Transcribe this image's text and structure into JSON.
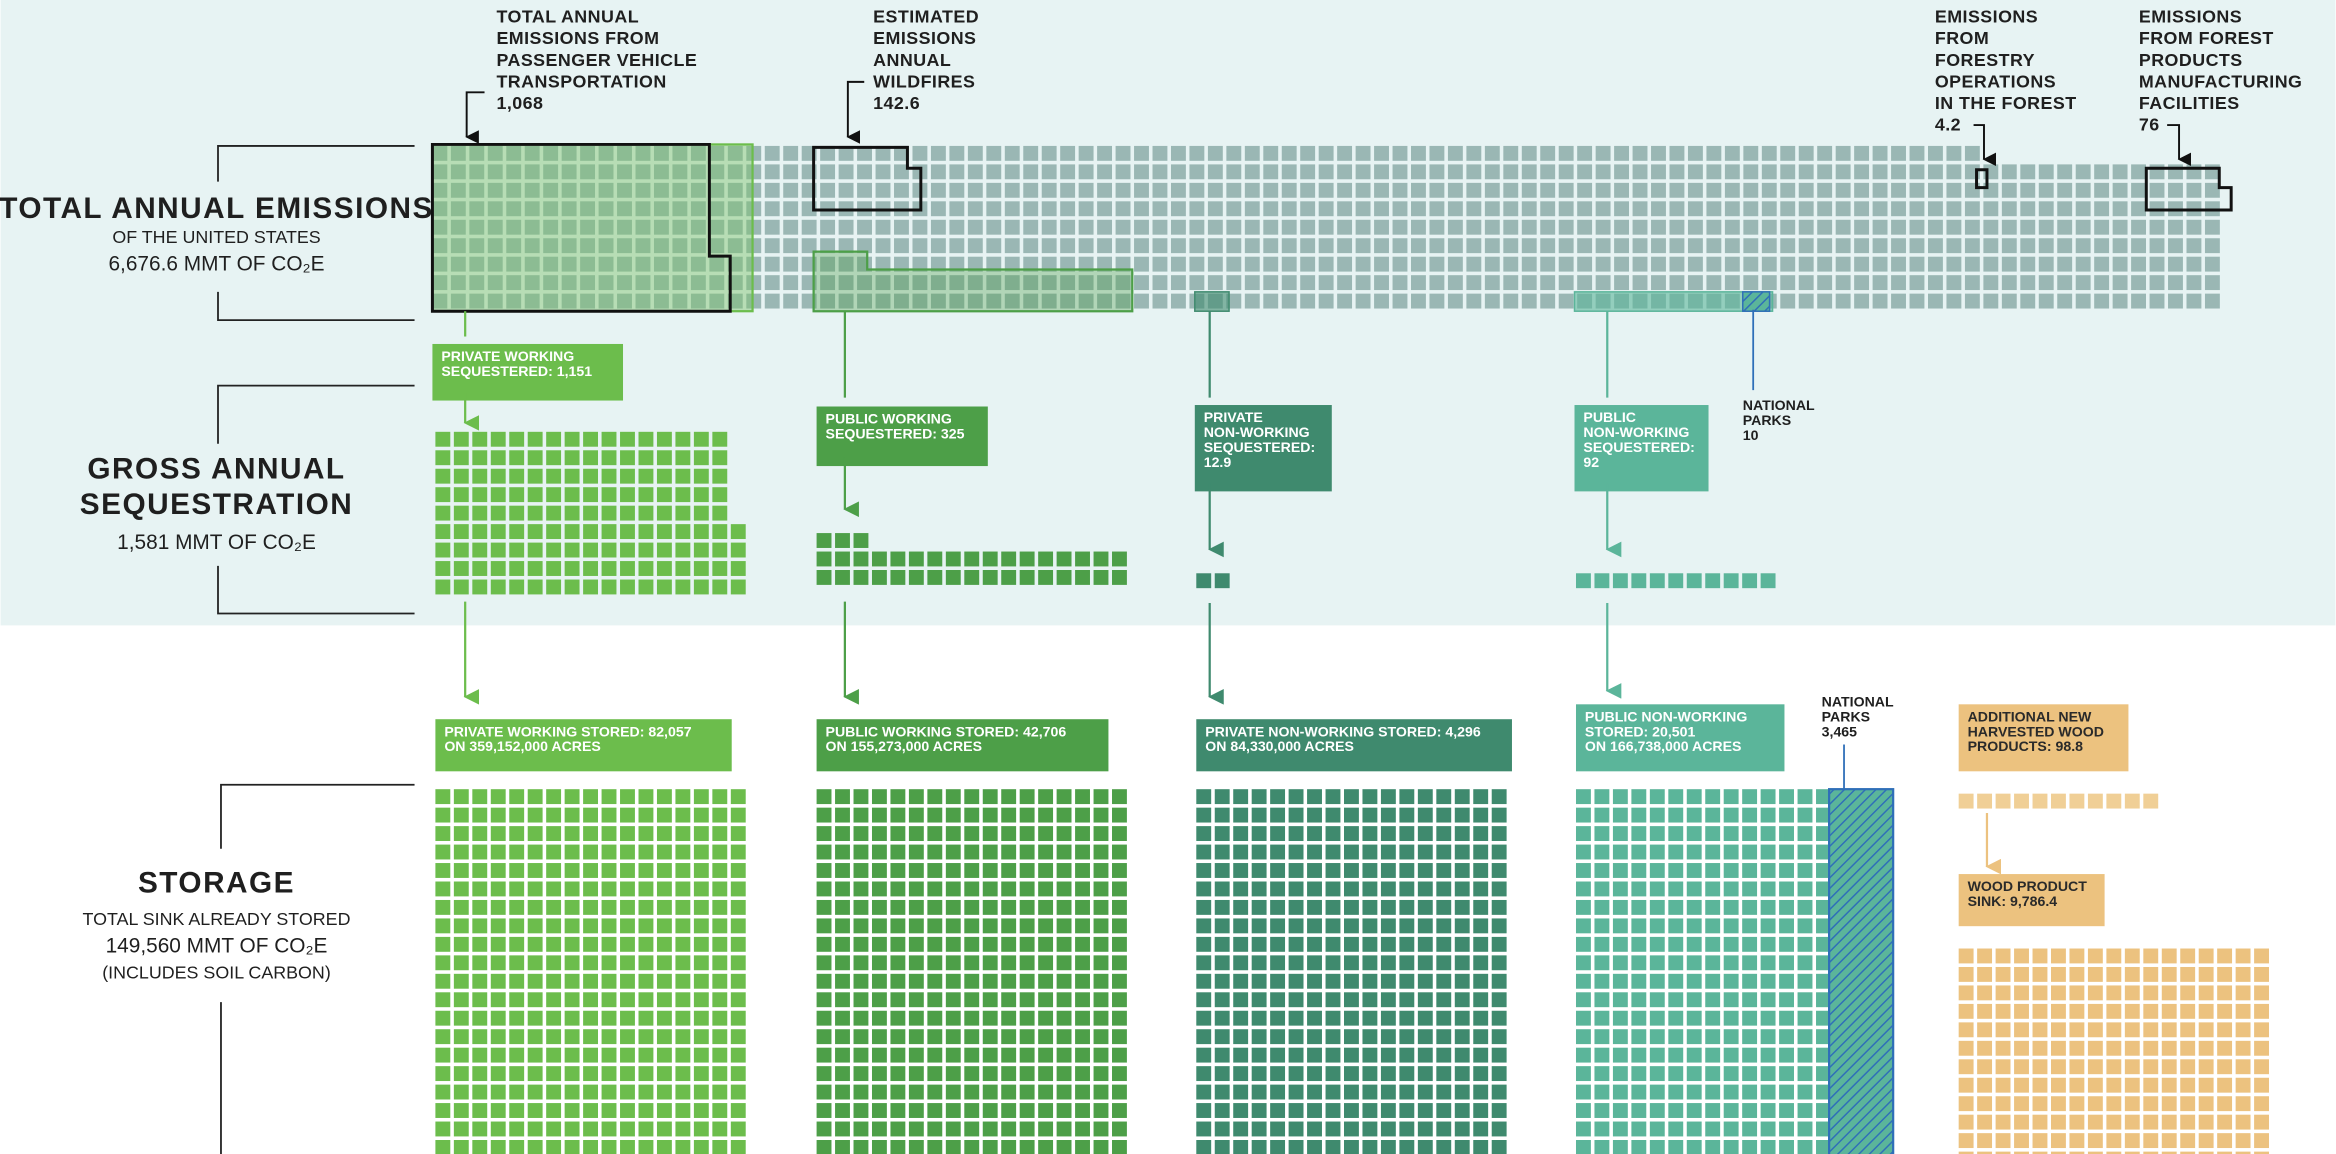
{
  "emissions": {
    "title": "TOTAL ANNUAL EMISSIONS",
    "subtitle": "OF THE UNITED STATES",
    "total": "6,676.6 MMT OF CO₂E"
  },
  "sequestration": {
    "title": [
      "GROSS ANNUAL",
      "SEQUESTRATION"
    ],
    "total": "1,581 MMT OF CO₂E"
  },
  "storage": {
    "title": "STORAGE",
    "subtitle": "TOTAL SINK ALREADY STORED",
    "total": "149,560 MMT OF CO₂E",
    "note": "(INCLUDES SOIL CARBON)"
  },
  "emission_sources": [
    {
      "label": [
        "TOTAL ANNUAL",
        "EMISSIONS FROM",
        "PASSENGER VEHICLE",
        "TRANSPORTATION"
      ],
      "value": "1,068"
    },
    {
      "label": [
        "ESTIMATED",
        "EMISSIONS",
        "ANNUAL",
        "WILDFIRES"
      ],
      "value": "142.6"
    },
    {
      "label": [
        "EMISSIONS",
        "FROM",
        "FORESTRY",
        "OPERATIONS",
        "IN THE FOREST"
      ],
      "value": "4.2"
    },
    {
      "label": [
        "EMISSIONS",
        "FROM FOREST",
        "PRODUCTS",
        "MANUFACTURING",
        "FACILITIES"
      ],
      "value": "76"
    }
  ],
  "sequestered": [
    {
      "label": [
        "PRIVATE WORKING",
        "SEQUESTERED: 1,151"
      ]
    },
    {
      "label": [
        "PUBLIC WORKING",
        "SEQUESTERED: 325"
      ]
    },
    {
      "label": [
        "PRIVATE",
        "NON-WORKING",
        "SEQUESTERED:",
        "12.9"
      ]
    },
    {
      "label": [
        "PUBLIC",
        "NON-WORKING",
        "SEQUESTERED:",
        "92"
      ]
    }
  ],
  "national_parks_sequestered": [
    "NATIONAL",
    "PARKS",
    "10"
  ],
  "stored": [
    {
      "label": [
        "PRIVATE WORKING STORED: 82,057",
        "ON 359,152,000 ACRES"
      ]
    },
    {
      "label": [
        "PUBLIC WORKING STORED: 42,706",
        "ON 155,273,000 ACRES"
      ]
    },
    {
      "label": [
        "PRIVATE NON-WORKING STORED: 4,296",
        "ON 84,330,000 ACRES"
      ]
    },
    {
      "label": [
        "PUBLIC NON-WORKING",
        "STORED: 20,501",
        "ON 166,738,000 ACRES"
      ]
    }
  ],
  "national_parks_stored": [
    "NATIONAL",
    "PARKS",
    "3,465"
  ],
  "wood": {
    "harvested": [
      "ADDITIONAL NEW",
      "HARVESTED WOOD",
      "PRODUCTS: 98.8"
    ],
    "sink": [
      "WOOD PRODUCT",
      "SINK: 9,786.4"
    ]
  }
}
